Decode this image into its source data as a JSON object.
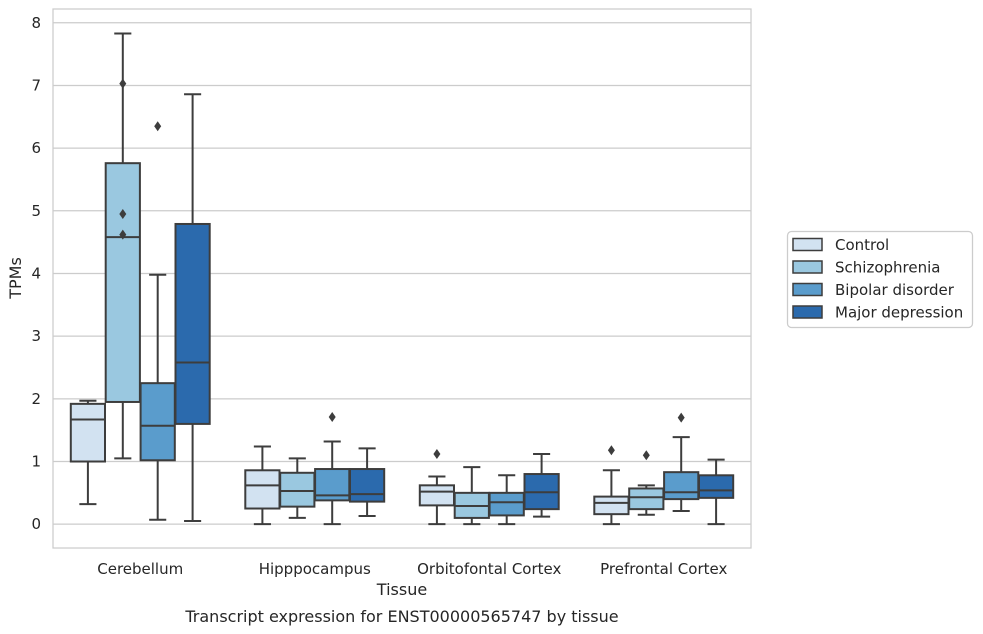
{
  "chart_data": {
    "type": "boxplot",
    "title": "",
    "caption": "Transcript expression for ENST00000565747 by tissue",
    "xlabel": "Tissue",
    "ylabel": "TPMs",
    "ylim": [
      -0.38,
      8.22
    ],
    "yticks": [
      0,
      1,
      2,
      3,
      4,
      5,
      6,
      7,
      8
    ],
    "grid": "horizontal",
    "legend_position": "right",
    "categories": [
      "Cerebellum",
      "Hipppocampus",
      "Orbitofontal Cortex",
      "Prefrontal Cortex"
    ],
    "series": [
      {
        "name": "Control",
        "color": "#d2e2f1",
        "boxes": [
          {
            "whisker_low": 0.32,
            "q1": 1.0,
            "median": 1.67,
            "q3": 1.92,
            "whisker_high": 1.97,
            "outliers": []
          },
          {
            "whisker_low": 0.0,
            "q1": 0.25,
            "median": 0.62,
            "q3": 0.86,
            "whisker_high": 1.24,
            "outliers": []
          },
          {
            "whisker_low": 0.0,
            "q1": 0.3,
            "median": 0.52,
            "q3": 0.62,
            "whisker_high": 0.76,
            "outliers": [
              1.12
            ]
          },
          {
            "whisker_low": 0.0,
            "q1": 0.16,
            "median": 0.34,
            "q3": 0.44,
            "whisker_high": 0.86,
            "outliers": [
              1.18
            ]
          }
        ]
      },
      {
        "name": "Schizophrenia",
        "color": "#9ac8e0",
        "boxes": [
          {
            "whisker_low": 1.05,
            "q1": 1.95,
            "median": 4.58,
            "q3": 5.76,
            "whisker_high": 7.83,
            "outliers": [
              7.03,
              4.95,
              4.62
            ]
          },
          {
            "whisker_low": 0.1,
            "q1": 0.28,
            "median": 0.53,
            "q3": 0.82,
            "whisker_high": 1.05,
            "outliers": []
          },
          {
            "whisker_low": 0.0,
            "q1": 0.1,
            "median": 0.29,
            "q3": 0.5,
            "whisker_high": 0.91,
            "outliers": []
          },
          {
            "whisker_low": 0.15,
            "q1": 0.24,
            "median": 0.43,
            "q3": 0.57,
            "whisker_high": 0.62,
            "outliers": [
              1.1
            ]
          }
        ]
      },
      {
        "name": "Bipolar disorder",
        "color": "#5a9ccc",
        "boxes": [
          {
            "whisker_low": 0.07,
            "q1": 1.02,
            "median": 1.57,
            "q3": 2.25,
            "whisker_high": 3.98,
            "outliers": [
              6.35
            ]
          },
          {
            "whisker_low": 0.0,
            "q1": 0.38,
            "median": 0.46,
            "q3": 0.88,
            "whisker_high": 1.32,
            "outliers": [
              1.71
            ]
          },
          {
            "whisker_low": 0.0,
            "q1": 0.14,
            "median": 0.35,
            "q3": 0.5,
            "whisker_high": 0.78,
            "outliers": []
          },
          {
            "whisker_low": 0.21,
            "q1": 0.4,
            "median": 0.51,
            "q3": 0.83,
            "whisker_high": 1.39,
            "outliers": [
              1.7
            ]
          }
        ]
      },
      {
        "name": "Major depression",
        "color": "#2b6aad",
        "boxes": [
          {
            "whisker_low": 0.05,
            "q1": 1.6,
            "median": 2.58,
            "q3": 4.79,
            "whisker_high": 6.86,
            "outliers": []
          },
          {
            "whisker_low": 0.13,
            "q1": 0.36,
            "median": 0.48,
            "q3": 0.88,
            "whisker_high": 1.21,
            "outliers": []
          },
          {
            "whisker_low": 0.12,
            "q1": 0.24,
            "median": 0.51,
            "q3": 0.8,
            "whisker_high": 1.12,
            "outliers": []
          },
          {
            "whisker_low": 0.0,
            "q1": 0.42,
            "median": 0.54,
            "q3": 0.78,
            "whisker_high": 1.03,
            "outliers": []
          }
        ]
      }
    ]
  }
}
